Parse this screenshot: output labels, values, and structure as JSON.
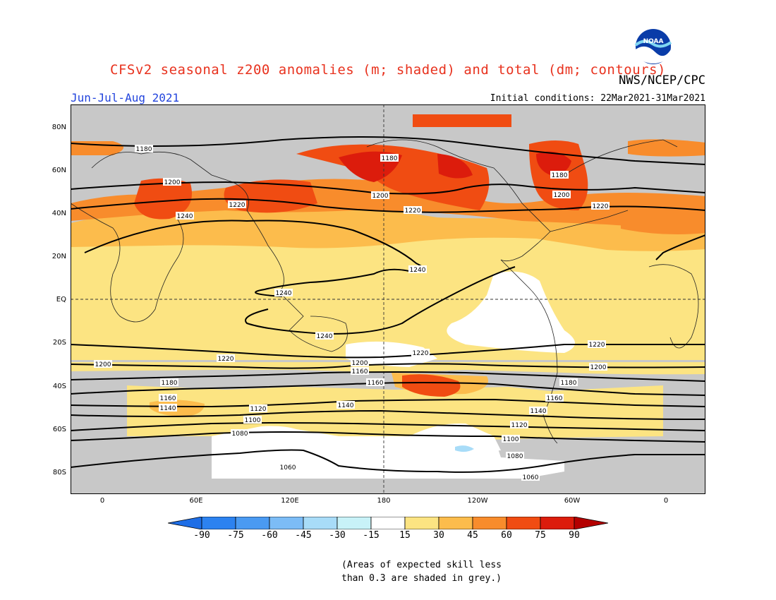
{
  "title": "CFSv2 seasonal z200 anomalies (m; shaded) and total (dm; contours)",
  "agency": "NWS/NCEP/CPC",
  "period": "Jun-Jul-Aug 2021",
  "initial_conditions": "Initial conditions: 22Mar2021-31Mar2021",
  "logo_text": "NOAA",
  "latitude_labels": [
    "80N",
    "60N",
    "40N",
    "20N",
    "EQ",
    "20S",
    "40S",
    "60S",
    "80S"
  ],
  "longitude_labels": [
    "0",
    "60E",
    "120E",
    "180",
    "120W",
    "60W",
    "0"
  ],
  "colorbar": {
    "labels": [
      "-90",
      "-75",
      "-60",
      "-45",
      "-30",
      "-15",
      "15",
      "30",
      "45",
      "60",
      "75",
      "90"
    ],
    "colors": [
      "#1e6ee6",
      "#2c82f0",
      "#4a9af2",
      "#7cbcf6",
      "#a8dcf8",
      "#c8f2f8",
      "#ffffff",
      "#fce482",
      "#fcbc4c",
      "#f88c2c",
      "#f04c12",
      "#dc1c0c",
      "#b40000"
    ]
  },
  "contour_labels": [
    "1180",
    "1200",
    "1220",
    "1240",
    "1160",
    "1140",
    "1120",
    "1100",
    "1080",
    "1060"
  ],
  "note": {
    "line1": "(Areas of expected skill less",
    "line2": "than 0.3 are shaded in grey.)"
  },
  "colors": {
    "grey_low_skill": "#c8c8c8",
    "title": "#e8321e",
    "period": "#2244dd"
  }
}
